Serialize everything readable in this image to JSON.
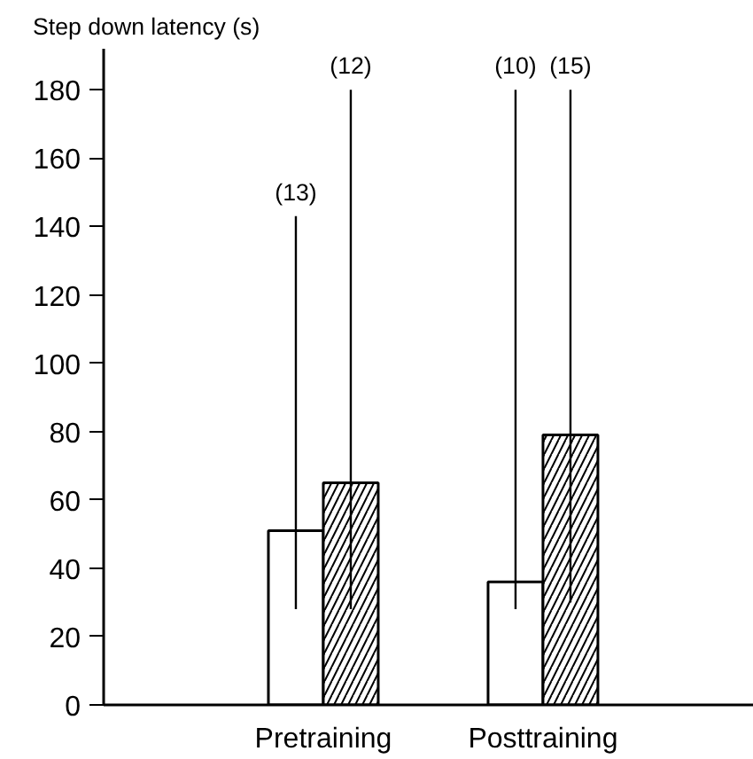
{
  "chart_data": {
    "type": "bar",
    "ylabel": "Step down latency (s)",
    "categories": [
      "Pretraining",
      "Posttraining"
    ],
    "series": [
      {
        "color": "#ffffff",
        "values": [
          51,
          36
        ],
        "errors": [
          [
            28,
            143
          ],
          [
            28,
            180
          ]
        ]
      },
      {
        "color": "#000000",
        "values": [
          65,
          79
        ],
        "errors": [
          [
            28,
            180
          ],
          [
            30,
            180
          ]
        ]
      }
    ],
    "ylim": [
      0,
      192
    ],
    "yticks": [
      0,
      20,
      40,
      60,
      80,
      100,
      120,
      140,
      160,
      180
    ],
    "grid": false,
    "annotations": [
      "(13)",
      "(12)",
      "(10)",
      "(15)"
    ]
  }
}
